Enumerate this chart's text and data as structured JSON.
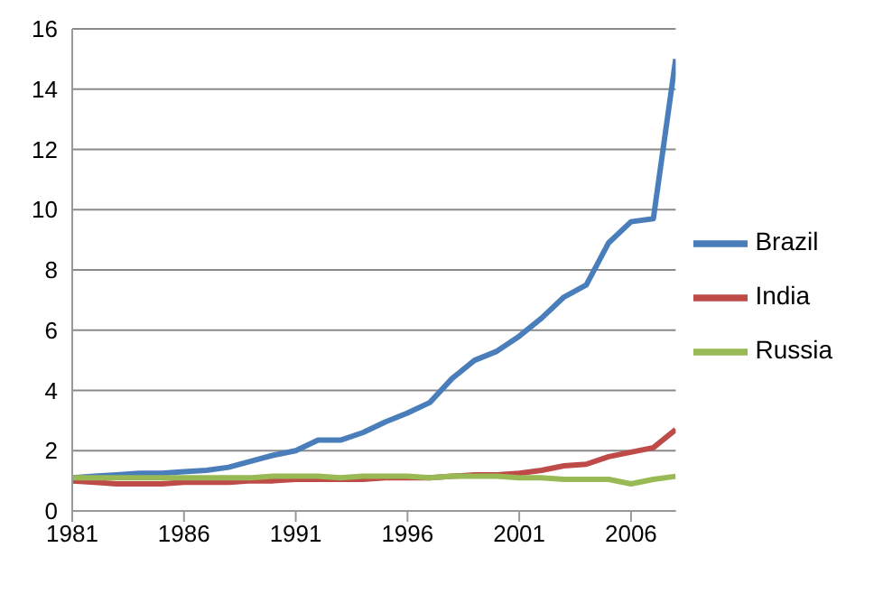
{
  "chart_data": {
    "type": "line",
    "x": [
      1981,
      1982,
      1983,
      1984,
      1985,
      1986,
      1987,
      1988,
      1989,
      1990,
      1991,
      1992,
      1993,
      1994,
      1995,
      1996,
      1997,
      1998,
      1999,
      2000,
      2001,
      2002,
      2003,
      2004,
      2005,
      2006,
      2007,
      2008
    ],
    "series": [
      {
        "name": "Brazil",
        "color": "#4a7ebb",
        "values": [
          1.1,
          1.15,
          1.2,
          1.25,
          1.25,
          1.3,
          1.35,
          1.45,
          1.65,
          1.85,
          2.0,
          2.35,
          2.35,
          2.6,
          2.95,
          3.25,
          3.6,
          4.4,
          5.0,
          5.3,
          5.8,
          6.4,
          7.1,
          7.5,
          8.9,
          9.6,
          9.7,
          15.0
        ]
      },
      {
        "name": "India",
        "color": "#be4b48",
        "values": [
          1.0,
          0.95,
          0.9,
          0.9,
          0.9,
          0.95,
          0.95,
          0.95,
          1.0,
          1.0,
          1.05,
          1.05,
          1.05,
          1.05,
          1.1,
          1.1,
          1.1,
          1.15,
          1.2,
          1.2,
          1.25,
          1.35,
          1.5,
          1.55,
          1.8,
          1.95,
          2.1,
          2.7
        ]
      },
      {
        "name": "Russia",
        "color": "#98b954",
        "values": [
          1.1,
          1.1,
          1.1,
          1.1,
          1.1,
          1.1,
          1.1,
          1.1,
          1.1,
          1.15,
          1.15,
          1.15,
          1.1,
          1.15,
          1.15,
          1.15,
          1.1,
          1.15,
          1.15,
          1.15,
          1.1,
          1.1,
          1.05,
          1.05,
          1.05,
          0.9,
          1.05,
          1.15
        ]
      }
    ],
    "xlim": [
      1981,
      2008
    ],
    "xticks": [
      1981,
      1986,
      1991,
      1996,
      2001,
      2006
    ],
    "ylim": [
      0,
      16
    ],
    "yticks": [
      0,
      2,
      4,
      6,
      8,
      10,
      12,
      14,
      16
    ],
    "grid": "y",
    "legend": "right",
    "marker": "none",
    "line_style": "solid"
  }
}
